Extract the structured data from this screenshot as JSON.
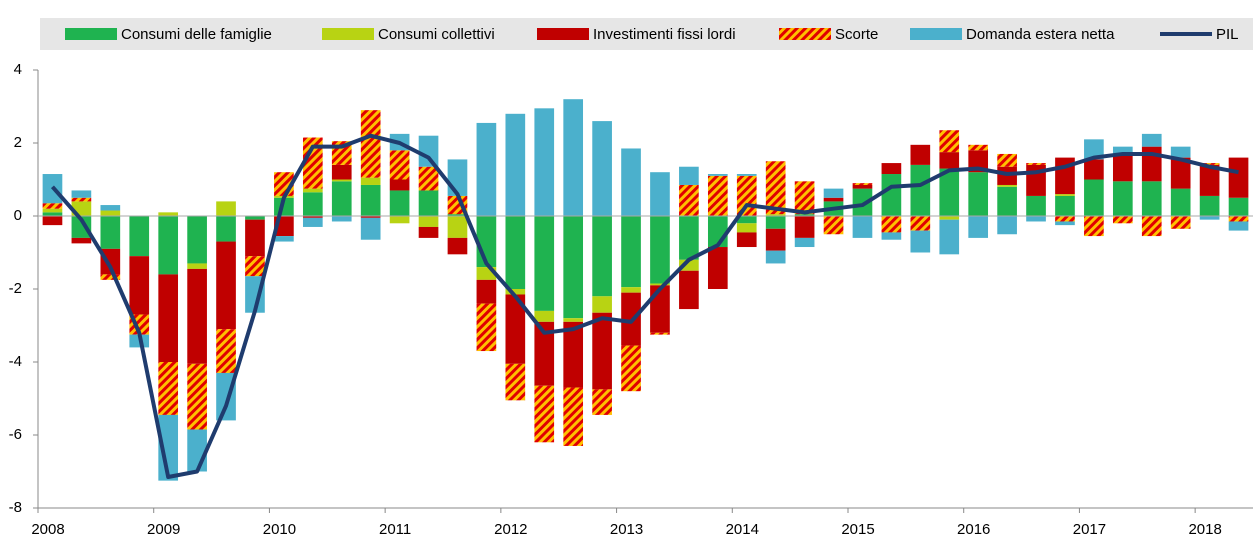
{
  "chart_data": {
    "type": "bar",
    "stacked": true,
    "categories": [
      "2008",
      null,
      null,
      null,
      "2009",
      null,
      null,
      null,
      "2010",
      null,
      null,
      null,
      "2011",
      null,
      null,
      null,
      "2012",
      null,
      null,
      null,
      "2013",
      null,
      null,
      null,
      "2014",
      null,
      null,
      null,
      "2015",
      null,
      null,
      null,
      "2016",
      null,
      null,
      null,
      "2017",
      null,
      null,
      null,
      "2018",
      null
    ],
    "ylim": [
      -8,
      4
    ],
    "yticks": [
      -8,
      -6,
      -4,
      -2,
      0,
      2,
      4
    ],
    "series": [
      {
        "name": "Consumi delle famiglie",
        "color": "#1fb350",
        "values": [
          0.1,
          -0.6,
          -0.9,
          -1.1,
          -1.6,
          -1.3,
          -0.7,
          -0.1,
          0.5,
          0.65,
          0.95,
          0.85,
          0.7,
          0.7,
          0.05,
          -1.4,
          -2.0,
          -2.6,
          -2.8,
          -2.2,
          -1.95,
          -1.85,
          -1.2,
          -0.85,
          -0.2,
          -0.35,
          0.05,
          0.4,
          0.75,
          1.15,
          1.4,
          1.3,
          1.2,
          0.8,
          0.55,
          0.55,
          1.0,
          0.95,
          0.95,
          0.75,
          0.55,
          0.5
        ]
      },
      {
        "name": "Consumi collettivi",
        "color": "#b8d313",
        "values": [
          0.1,
          0.4,
          0.15,
          0,
          0.1,
          -0.15,
          0.4,
          0,
          0.05,
          0.1,
          0.05,
          0.2,
          -0.2,
          -0.3,
          -0.6,
          -0.35,
          -0.15,
          -0.3,
          -0.1,
          -0.45,
          -0.15,
          -0.05,
          -0.3,
          0,
          -0.25,
          0.05,
          0,
          0,
          0,
          0,
          0,
          -0.1,
          0,
          0.05,
          0,
          0.05,
          0,
          0,
          0,
          0,
          0,
          0
        ]
      },
      {
        "name": "Investimenti fissi lordi",
        "color": "#c00000",
        "values": [
          -0.25,
          -0.15,
          -0.7,
          -1.6,
          -2.4,
          -2.6,
          -2.4,
          -1.0,
          -0.55,
          -0.05,
          0.4,
          -0.05,
          0.3,
          -0.3,
          -0.45,
          -0.65,
          -1.9,
          -1.75,
          -1.8,
          -2.1,
          -1.45,
          -1.3,
          -1.05,
          -1.15,
          -0.4,
          -0.6,
          -0.6,
          0.1,
          0.1,
          0.3,
          0.55,
          0.45,
          0.6,
          0.5,
          0.85,
          1.0,
          0.55,
          0.7,
          0.95,
          0.85,
          0.85,
          1.1
        ]
      },
      {
        "name": "Scorte",
        "color": "#e00000",
        "hatch_color": "#ffc000",
        "values": [
          0.15,
          0.1,
          -0.15,
          -0.55,
          -1.45,
          -1.8,
          -1.2,
          -0.55,
          0.65,
          1.4,
          0.65,
          1.85,
          0.8,
          0.65,
          0.5,
          -1.3,
          -1.0,
          -1.55,
          -1.6,
          -0.7,
          -1.25,
          -0.05,
          0.85,
          1.1,
          1.1,
          1.45,
          0.9,
          -0.5,
          0.05,
          -0.45,
          -0.4,
          0.6,
          0.15,
          0.35,
          0.05,
          -0.15,
          -0.55,
          -0.2,
          -0.55,
          -0.35,
          0.05,
          -0.15
        ]
      },
      {
        "name": "Domanda estera netta",
        "color": "#4bb0cc",
        "values": [
          0.8,
          0.2,
          0.15,
          -0.35,
          -1.8,
          -1.15,
          -1.3,
          -1.0,
          -0.15,
          -0.25,
          -0.15,
          -0.6,
          0.45,
          0.85,
          1.0,
          2.55,
          2.8,
          2.95,
          3.2,
          2.6,
          1.85,
          1.2,
          0.5,
          0.05,
          0.05,
          -0.35,
          -0.25,
          0.25,
          -0.6,
          -0.2,
          -0.6,
          -0.95,
          -0.6,
          -0.5,
          -0.15,
          -0.1,
          0.55,
          0.25,
          0.35,
          0.3,
          -0.1,
          -0.25
        ]
      },
      {
        "name": "PIL",
        "type": "line",
        "color": "#1f3c6e",
        "values": [
          0.8,
          -0.1,
          -1.4,
          -3.2,
          -7.15,
          -7.0,
          -5.2,
          -2.6,
          0.5,
          1.9,
          1.9,
          2.2,
          2.0,
          1.6,
          0.6,
          -1.3,
          -2.2,
          -3.2,
          -3.1,
          -2.8,
          -2.9,
          -2.0,
          -1.2,
          -0.8,
          0.3,
          0.2,
          0.1,
          0.2,
          0.3,
          0.8,
          0.85,
          1.25,
          1.3,
          1.15,
          1.2,
          1.35,
          1.6,
          1.7,
          1.7,
          1.55,
          1.35,
          1.2
        ]
      }
    ]
  }
}
